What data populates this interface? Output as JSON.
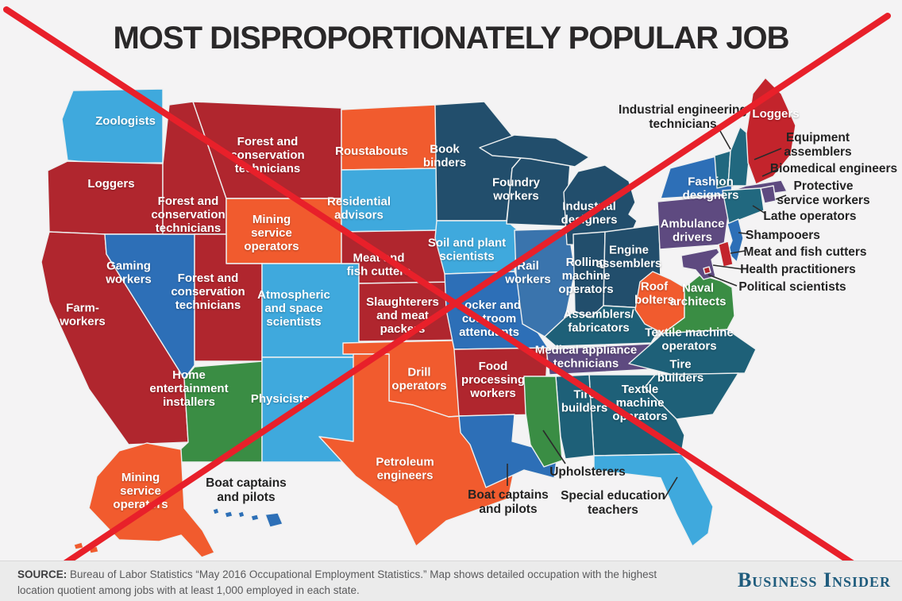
{
  "title": "MOST DISPROPORTIONATELY POPULAR JOB",
  "watermark": {
    "name": "rejection-cross",
    "color": "#e8202a"
  },
  "footer": {
    "source_label": "SOURCE:",
    "source_text": " Bureau of Labor Statistics “May 2016 Occupational Employment Statistics.” Map shows detailed occupation with the highest location quotient among jobs with at least 1,000 employed in each state.",
    "brand": "Business Insider"
  },
  "palette": {
    "bg": "#f4f3f4",
    "footer_bg": "#ebebeb",
    "border": "#eef0f0",
    "light_blue": "#3fa9dd",
    "blue": "#2d6fb7",
    "illinois_blue": "#3a74ad",
    "navy": "#224e6c",
    "teal": "#21687f",
    "se_teal": "#1e6078",
    "dark_red": "#b0262e",
    "bright_red": "#c3242c",
    "orange": "#f15b2e",
    "green": "#3a8d44",
    "purple": "#5e4a80",
    "x_red": "#e8202a",
    "title_color": "#2a2829",
    "callout_color": "#232323",
    "source_color": "#5a5a5c",
    "brand_color": "#1f5c7d"
  },
  "map": {
    "states": [
      {
        "id": "washington",
        "job": "Zoologists",
        "color": "light_blue",
        "label": "Zoologists",
        "label_on": "state"
      },
      {
        "id": "oregon",
        "job": "Loggers",
        "color": "dark_red",
        "label": "Loggers",
        "label_on": "state"
      },
      {
        "id": "california",
        "job": "Farmworkers",
        "color": "dark_red",
        "label": "Farm-\nworkers",
        "label_on": "state"
      },
      {
        "id": "nevada",
        "job": "Gaming workers",
        "color": "blue",
        "label": "Gaming\nworkers",
        "label_on": "state"
      },
      {
        "id": "idaho",
        "job": "Forest and conservation technicians",
        "color": "dark_red",
        "label": "Forest and\nconservation\ntechnicians",
        "label_on": "state"
      },
      {
        "id": "montana",
        "job": "Forest and conservation technicians",
        "color": "dark_red",
        "label": "Forest and\nconservation\ntechnicians",
        "label_on": "state"
      },
      {
        "id": "wyoming",
        "job": "Mining service operators",
        "color": "orange",
        "label": "Mining\nservice\noperators",
        "label_on": "state"
      },
      {
        "id": "utah",
        "job": "Forest and conservation technicians",
        "color": "dark_red",
        "label": "Forest and\nconservation\ntechnicians",
        "label_on": "state"
      },
      {
        "id": "colorado",
        "job": "Atmospheric and space scientists",
        "color": "light_blue",
        "label": "Atmospheric\nand space\nscientists",
        "label_on": "state"
      },
      {
        "id": "arizona",
        "job": "Home entertainment installers",
        "color": "green",
        "label": "Home\nentertainment\ninstallers",
        "label_on": "state"
      },
      {
        "id": "new-mexico",
        "job": "Physicists",
        "color": "light_blue",
        "label": "Physicists",
        "label_on": "state"
      },
      {
        "id": "north-dakota",
        "job": "Roustabouts",
        "color": "orange",
        "label": "Roustabouts",
        "label_on": "state"
      },
      {
        "id": "south-dakota",
        "job": "Residential advisors",
        "color": "light_blue",
        "label": "Residential\nadvisors",
        "label_on": "state"
      },
      {
        "id": "nebraska",
        "job": "Meat and fish cutters",
        "color": "dark_red",
        "label": "Meat and\nfish cutters",
        "label_on": "state"
      },
      {
        "id": "kansas",
        "job": "Slaughterers and meat packers",
        "color": "dark_red",
        "label": "Slaughterers\nand meat\npackers",
        "label_on": "state"
      },
      {
        "id": "oklahoma",
        "job": "Drill operators",
        "color": "orange",
        "label": "Drill\noperators",
        "label_on": "state"
      },
      {
        "id": "texas",
        "job": "Petroleum engineers",
        "color": "orange",
        "label": "Petroleum\nengineers",
        "label_on": "state"
      },
      {
        "id": "minnesota",
        "job": "Book binders",
        "color": "navy",
        "label": "Book\nbinders",
        "label_on": "state"
      },
      {
        "id": "iowa",
        "job": "Soil and plant scientists",
        "color": "light_blue",
        "label": "Soil and plant\nscientists",
        "label_on": "state"
      },
      {
        "id": "missouri",
        "job": "Locker and coatroom attendants",
        "color": "blue",
        "label": "Locker and\ncoatroom\nattendants",
        "label_on": "state"
      },
      {
        "id": "arkansas",
        "job": "Food processing workers",
        "color": "dark_red",
        "label": "Food\nprocessing\nworkers",
        "label_on": "state"
      },
      {
        "id": "louisiana",
        "job": "Boat captains and pilots",
        "color": "blue",
        "label": "Boat captains\nand pilots",
        "label_on": "callout"
      },
      {
        "id": "wisconsin",
        "job": "Foundry workers",
        "color": "navy",
        "label": "Foundry\nworkers",
        "label_on": "state"
      },
      {
        "id": "illinois",
        "job": "Rail workers",
        "color": "illinois_blue",
        "label": "Rail\nworkers",
        "label_on": "state"
      },
      {
        "id": "michigan",
        "job": "Industrial designers",
        "color": "navy",
        "label": "Industrial\ndesigners",
        "label_on": "state"
      },
      {
        "id": "indiana",
        "job": "Rolling machine operators",
        "color": "navy",
        "label": "Rolling\nmachine\noperators",
        "label_on": "state"
      },
      {
        "id": "ohio",
        "job": "Engine assemblers",
        "color": "navy",
        "label": "Engine\nassemblers",
        "label_on": "state"
      },
      {
        "id": "kentucky",
        "job": "Assemblers/fabricators",
        "color": "se_teal",
        "label": "Assemblers/\nfabricators",
        "label_on": "state"
      },
      {
        "id": "tennessee",
        "job": "Medical appliance technicians",
        "color": "purple",
        "label": "Medical appliance\ntechnicians",
        "label_on": "state"
      },
      {
        "id": "west-virginia",
        "job": "Roof bolters",
        "color": "orange",
        "label": "Roof\nbolters",
        "label_on": "state"
      },
      {
        "id": "virginia",
        "job": "Naval architects",
        "color": "green",
        "label": "Naval\narchitects",
        "label_on": "state"
      },
      {
        "id": "north-carolina",
        "job": "Textile machine operators",
        "color": "se_teal",
        "label": "Textile machine\noperators",
        "label_on": "state"
      },
      {
        "id": "south-carolina",
        "job": "Tire builders",
        "color": "se_teal",
        "label": "Tire\nbuilders",
        "label_on": "state"
      },
      {
        "id": "georgia",
        "job": "Textile machine operators",
        "color": "se_teal",
        "label": "Textile\nmachine\noperators",
        "label_on": "state"
      },
      {
        "id": "alabama",
        "job": "Tire builders",
        "color": "se_teal",
        "label": "Tire\nbuilders",
        "label_on": "state"
      },
      {
        "id": "mississippi",
        "job": "Upholsterers",
        "color": "green",
        "label": "Upholsterers",
        "label_on": "callout"
      },
      {
        "id": "florida",
        "job": "Special education teachers",
        "color": "light_blue",
        "label": "Special education\nteachers",
        "label_on": "callout"
      },
      {
        "id": "pennsylvania",
        "job": "Ambulance drivers",
        "color": "purple",
        "label": "Ambulance\ndrivers",
        "label_on": "state"
      },
      {
        "id": "new-york",
        "job": "Fashion designers",
        "color": "blue",
        "label": "Fashion\ndesigners",
        "label_on": "state"
      },
      {
        "id": "vermont",
        "job": "Industrial engineering technicians",
        "color": "teal",
        "label": "Industrial engineering\ntechnicians",
        "label_on": "callout"
      },
      {
        "id": "new-hampshire",
        "job": "Equipment assemblers",
        "color": "teal",
        "label": "Equipment\nassemblers",
        "label_on": "callout"
      },
      {
        "id": "maine",
        "job": "Loggers",
        "color": "bright_red",
        "label": "Loggers",
        "label_on": "state"
      },
      {
        "id": "massachusetts",
        "job": "Biomedical engineers",
        "color": "purple",
        "label": "Biomedical engineers",
        "label_on": "callout"
      },
      {
        "id": "rhode-island",
        "job": "Protective service workers",
        "color": "purple",
        "label": "Protective\nservice workers",
        "label_on": "callout"
      },
      {
        "id": "connecticut",
        "job": "Lathe operators",
        "color": "teal",
        "label": "Lathe operators",
        "label_on": "callout"
      },
      {
        "id": "new-jersey",
        "job": "Shampooers",
        "color": "blue",
        "label": "Shampooers",
        "label_on": "callout"
      },
      {
        "id": "delaware",
        "job": "Meat and fish cutters",
        "color": "bright_red",
        "label": "Meat and fish cutters",
        "label_on": "callout"
      },
      {
        "id": "maryland",
        "job": "Health practitioners",
        "color": "purple",
        "label": "Health practitioners",
        "label_on": "callout"
      },
      {
        "id": "district-of-columbia",
        "job": "Political scientists",
        "color": "dark_red",
        "label": "Political scientists",
        "label_on": "callout"
      },
      {
        "id": "alaska",
        "job": "Mining service operators",
        "color": "orange",
        "label": "Mining\nservice\noperators",
        "label_on": "state"
      },
      {
        "id": "hawaii",
        "job": "Boat captains and pilots",
        "color": "blue",
        "label": "Boat captains\nand pilots",
        "label_on": "callout"
      }
    ]
  }
}
